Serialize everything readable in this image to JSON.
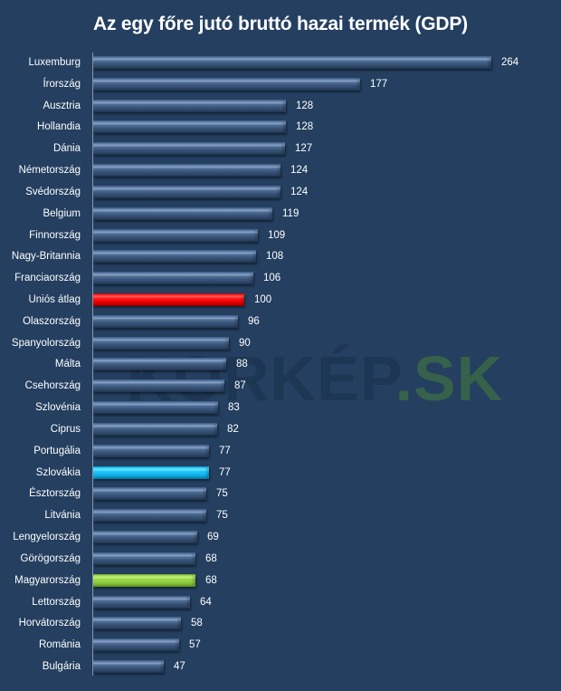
{
  "chart_data": {
    "type": "bar",
    "orientation": "horizontal",
    "title": "Az egy főre jutó bruttó hazai termék (GDP)",
    "xlabel": "",
    "ylabel": "",
    "xlim": [
      0,
      264
    ],
    "grid": false,
    "legend": null,
    "data_labels": true,
    "categories": [
      "Luxemburg",
      "Írország",
      "Ausztria",
      "Hollandia",
      "Dánia",
      "Németország",
      "Svédország",
      "Belgium",
      "Finnország",
      "Nagy-Britannia",
      "Franciaország",
      "Uniós átlag",
      "Olaszország",
      "Spanyolország",
      "Málta",
      "Csehország",
      "Szlovénia",
      "Ciprus",
      "Portugália",
      "Szlovákia",
      "Észtország",
      "Litvánia",
      "Lengyelország",
      "Görögország",
      "Magyarország",
      "Lettország",
      "Horvátország",
      "Románia",
      "Bulgária"
    ],
    "values": [
      264,
      177,
      128,
      128,
      127,
      124,
      124,
      119,
      109,
      108,
      106,
      100,
      96,
      90,
      88,
      87,
      83,
      82,
      77,
      77,
      75,
      75,
      69,
      68,
      68,
      64,
      58,
      57,
      47
    ],
    "highlights": {
      "Uniós átlag": "#ff1a1a",
      "Szlovákia": "#20c6f7",
      "Magyarország": "#9ad84a"
    },
    "annotations": [
      "KORKÉP.SK (watermark)"
    ]
  },
  "title": "Az egy főre jutó bruttó hazai termék (GDP)",
  "watermark": {
    "main": "KORKÉP",
    "suffix": ".SK"
  },
  "colors": {
    "background": "#243f60",
    "bar_default": "#4f6d95",
    "bar_eu_average": "#ff1a1a",
    "bar_slovakia": "#20c6f7",
    "bar_hungary": "#9ad84a",
    "text": "#ffffff"
  },
  "rows": [
    {
      "label": "Luxemburg",
      "value": "264",
      "style": "default"
    },
    {
      "label": "Írország",
      "value": "177",
      "style": "default"
    },
    {
      "label": "Ausztria",
      "value": "128",
      "style": "default"
    },
    {
      "label": "Hollandia",
      "value": "128",
      "style": "default"
    },
    {
      "label": "Dánia",
      "value": "127",
      "style": "default"
    },
    {
      "label": "Németország",
      "value": "124",
      "style": "default"
    },
    {
      "label": "Svédország",
      "value": "124",
      "style": "default"
    },
    {
      "label": "Belgium",
      "value": "119",
      "style": "default"
    },
    {
      "label": "Finnország",
      "value": "109",
      "style": "default"
    },
    {
      "label": "Nagy-Britannia",
      "value": "108",
      "style": "default"
    },
    {
      "label": "Franciaország",
      "value": "106",
      "style": "default"
    },
    {
      "label": "Uniós átlag",
      "value": "100",
      "style": "red"
    },
    {
      "label": "Olaszország",
      "value": "96",
      "style": "default"
    },
    {
      "label": "Spanyolország",
      "value": "90",
      "style": "default"
    },
    {
      "label": "Málta",
      "value": "88",
      "style": "default"
    },
    {
      "label": "Csehország",
      "value": "87",
      "style": "default"
    },
    {
      "label": "Szlovénia",
      "value": "83",
      "style": "default"
    },
    {
      "label": "Ciprus",
      "value": "82",
      "style": "default"
    },
    {
      "label": "Portugália",
      "value": "77",
      "style": "default"
    },
    {
      "label": "Szlovákia",
      "value": "77",
      "style": "cyan"
    },
    {
      "label": "Észtország",
      "value": "75",
      "style": "default"
    },
    {
      "label": "Litvánia",
      "value": "75",
      "style": "default"
    },
    {
      "label": "Lengyelország",
      "value": "69",
      "style": "default"
    },
    {
      "label": "Görögország",
      "value": "68",
      "style": "default"
    },
    {
      "label": "Magyarország",
      "value": "68",
      "style": "green"
    },
    {
      "label": "Lettország",
      "value": "64",
      "style": "default"
    },
    {
      "label": "Horvátország",
      "value": "58",
      "style": "default"
    },
    {
      "label": "Románia",
      "value": "57",
      "style": "default"
    },
    {
      "label": "Bulgária",
      "value": "47",
      "style": "default"
    }
  ]
}
